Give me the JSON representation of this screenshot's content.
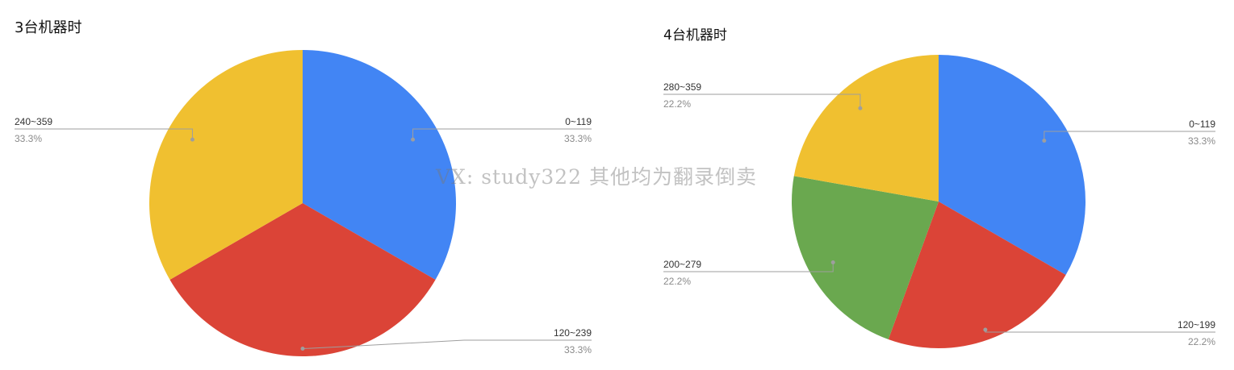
{
  "watermark": "VX: study322 其他均为翻录倒卖",
  "chart_data": [
    {
      "type": "pie",
      "title": "3台机器时",
      "start_angle_deg": 0,
      "direction": "clockwise",
      "slices": [
        {
          "label": "0~119",
          "value": 33.3,
          "percent_label": "33.3%",
          "color": "#4285F4"
        },
        {
          "label": "120~239",
          "value": 33.3,
          "percent_label": "33.3%",
          "color": "#DB4437"
        },
        {
          "label": "240~359",
          "value": 33.3,
          "percent_label": "33.3%",
          "color": "#F0C030"
        }
      ]
    },
    {
      "type": "pie",
      "title": "4台机器时",
      "start_angle_deg": 0,
      "direction": "clockwise",
      "slices": [
        {
          "label": "0~119",
          "value": 33.3,
          "percent_label": "33.3%",
          "color": "#4285F4"
        },
        {
          "label": "120~199",
          "value": 22.2,
          "percent_label": "22.2%",
          "color": "#DB4437"
        },
        {
          "label": "200~279",
          "value": 22.2,
          "percent_label": "22.2%",
          "color": "#6AA84F"
        },
        {
          "label": "280~359",
          "value": 22.2,
          "percent_label": "22.2%",
          "color": "#F0C030"
        }
      ]
    }
  ]
}
